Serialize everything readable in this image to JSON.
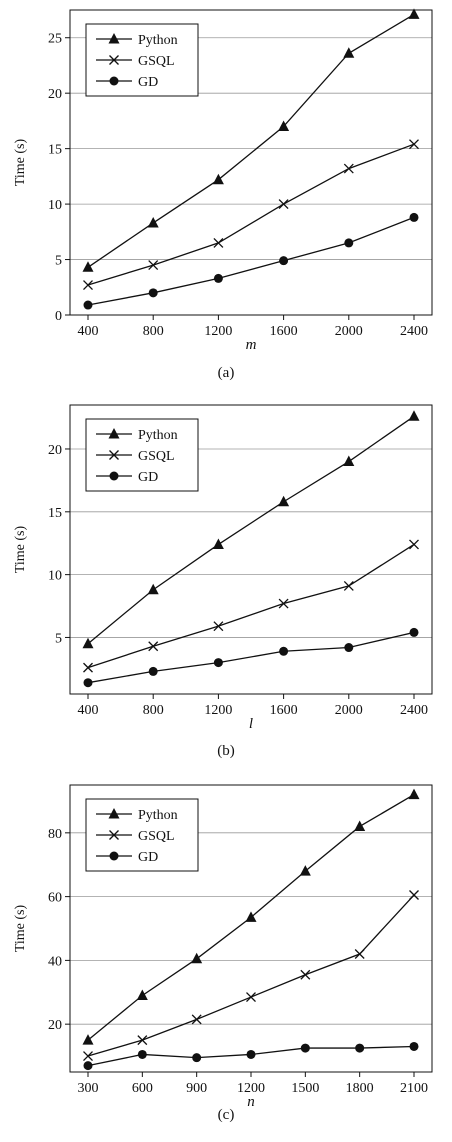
{
  "chart_data": [
    {
      "type": "line",
      "panel_label": "(a)",
      "xlabel": "m",
      "ylabel": "Time (s)",
      "x": [
        400,
        800,
        1200,
        1600,
        2000,
        2400
      ],
      "xlim": [
        400,
        2400
      ],
      "ylim": [
        0,
        27.5
      ],
      "yticks": [
        0,
        5,
        10,
        15,
        20,
        25
      ],
      "grid": "horizontal",
      "legend_position": "top-left",
      "series": [
        {
          "name": "Python",
          "marker": "triangle",
          "values": [
            4.3,
            8.3,
            12.2,
            17.0,
            23.6,
            27.1
          ]
        },
        {
          "name": "GSQL",
          "marker": "cross",
          "values": [
            2.7,
            4.5,
            6.5,
            10.0,
            13.2,
            15.4
          ]
        },
        {
          "name": "GD",
          "marker": "circle",
          "values": [
            0.9,
            2.0,
            3.3,
            4.9,
            6.5,
            8.8
          ]
        }
      ]
    },
    {
      "type": "line",
      "panel_label": "(b)",
      "xlabel": "l",
      "ylabel": "Time (s)",
      "x": [
        400,
        800,
        1200,
        1600,
        2000,
        2400
      ],
      "xlim": [
        400,
        2400
      ],
      "ylim": [
        0.5,
        23.5
      ],
      "yticks": [
        5,
        10,
        15,
        20
      ],
      "grid": "horizontal",
      "legend_position": "top-left",
      "series": [
        {
          "name": "Python",
          "marker": "triangle",
          "values": [
            4.5,
            8.8,
            12.4,
            15.8,
            19.0,
            22.6
          ]
        },
        {
          "name": "GSQL",
          "marker": "cross",
          "values": [
            2.6,
            4.3,
            5.9,
            7.7,
            9.1,
            12.4
          ]
        },
        {
          "name": "GD",
          "marker": "circle",
          "values": [
            1.4,
            2.3,
            3.0,
            3.9,
            4.2,
            5.4
          ]
        }
      ]
    },
    {
      "type": "line",
      "panel_label": "(c)",
      "xlabel": "n",
      "ylabel": "Time (s)",
      "x": [
        300,
        600,
        900,
        1200,
        1500,
        1800,
        2100
      ],
      "xlim": [
        300,
        2100
      ],
      "ylim": [
        5,
        95
      ],
      "yticks": [
        20,
        40,
        60,
        80
      ],
      "grid": "horizontal",
      "legend_position": "top-left",
      "series": [
        {
          "name": "Python",
          "marker": "triangle",
          "values": [
            15.0,
            29.0,
            40.5,
            53.5,
            68.0,
            82.0,
            92.0
          ]
        },
        {
          "name": "GSQL",
          "marker": "cross",
          "values": [
            10.0,
            15.0,
            21.5,
            28.5,
            35.5,
            42.0,
            60.5
          ]
        },
        {
          "name": "GD",
          "marker": "circle",
          "values": [
            7.0,
            10.5,
            9.5,
            10.5,
            12.5,
            12.5,
            13.0
          ]
        }
      ]
    }
  ]
}
